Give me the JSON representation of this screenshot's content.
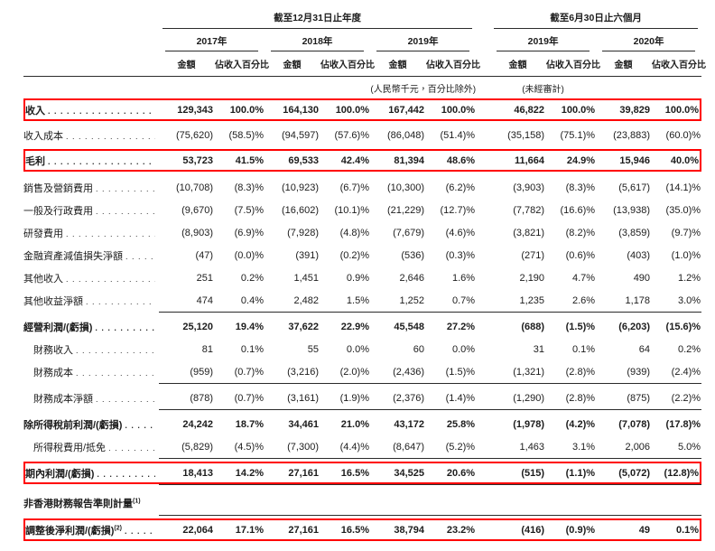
{
  "colors": {
    "highlight_red": "#ff0000",
    "rule_color": "#2b2b2b"
  },
  "table": {
    "header": {
      "period_groups": [
        {
          "label": "截至12月31日止年度"
        },
        {
          "label": "截至6月30日止六個月"
        }
      ],
      "years": [
        "2017年",
        "2018年",
        "2019年",
        "2019年",
        "2020年"
      ],
      "amount_label": "金額",
      "pct_label": "佔收入百分比",
      "currency_note": "(人民幣千元，百分比除外)",
      "unaudited_note": "(未經審計)"
    },
    "rows": [
      {
        "type": "data",
        "label": "收入",
        "bold": true,
        "highlight": true,
        "values": [
          "129,343",
          "100.0%",
          "164,130",
          "100.0%",
          "167,442",
          "100.0%",
          "46,822",
          "100.0%",
          "39,829",
          "100.0%"
        ]
      },
      {
        "type": "space",
        "h": 3
      },
      {
        "type": "data",
        "label": "收入成本",
        "values": [
          "(75,620)",
          "(58.5)%",
          "(94,597)",
          "(57.6)%",
          "(86,048)",
          "(51.4)%",
          "(35,158)",
          "(75.1)%",
          "(23,883)",
          "(60.0)%"
        ]
      },
      {
        "type": "space",
        "h": 3
      },
      {
        "type": "data",
        "label": "毛利",
        "bold": true,
        "highlight": true,
        "values": [
          "53,723",
          "41.5%",
          "69,533",
          "42.4%",
          "81,394",
          "48.6%",
          "11,664",
          "24.9%",
          "15,946",
          "40.0%"
        ]
      },
      {
        "type": "space",
        "h": 5
      },
      {
        "type": "data",
        "label": "銷售及營銷費用",
        "values": [
          "(10,708)",
          "(8.3)%",
          "(10,923)",
          "(6.7)%",
          "(10,300)",
          "(6.2)%",
          "(3,903)",
          "(8.3)%",
          "(5,617)",
          "(14.1)%"
        ]
      },
      {
        "type": "data",
        "label": "一般及行政費用",
        "values": [
          "(9,670)",
          "(7.5)%",
          "(16,602)",
          "(10.1)%",
          "(21,229)",
          "(12.7)%",
          "(7,782)",
          "(16.6)%",
          "(13,938)",
          "(35.0)%"
        ]
      },
      {
        "type": "data",
        "label": "研發費用",
        "values": [
          "(8,903)",
          "(6.9)%",
          "(7,928)",
          "(4.8)%",
          "(7,679)",
          "(4.6)%",
          "(3,821)",
          "(8.2)%",
          "(3,859)",
          "(9.7)%"
        ]
      },
      {
        "type": "data",
        "label": "金融資產減值損失淨額",
        "values": [
          "(47)",
          "(0.0)%",
          "(391)",
          "(0.2)%",
          "(536)",
          "(0.3)%",
          "(271)",
          "(0.6)%",
          "(403)",
          "(1.0)%"
        ]
      },
      {
        "type": "data",
        "label": "其他收入",
        "values": [
          "251",
          "0.2%",
          "1,451",
          "0.9%",
          "2,646",
          "1.6%",
          "2,190",
          "4.7%",
          "490",
          "1.2%"
        ]
      },
      {
        "type": "data",
        "label": "其他收益淨額",
        "values": [
          "474",
          "0.4%",
          "2,482",
          "1.5%",
          "1,252",
          "0.7%",
          "1,235",
          "2.6%",
          "1,178",
          "3.0%"
        ]
      },
      {
        "type": "rule"
      },
      {
        "type": "data",
        "label": "經營利潤/(虧損)",
        "bold": true,
        "values": [
          "25,120",
          "19.4%",
          "37,622",
          "22.9%",
          "45,548",
          "27.2%",
          "(688)",
          "(1.5)%",
          "(6,203)",
          "(15.6)%"
        ]
      },
      {
        "type": "data",
        "label": "財務收入",
        "indent": true,
        "values": [
          "81",
          "0.1%",
          "55",
          "0.0%",
          "60",
          "0.0%",
          "31",
          "0.1%",
          "64",
          "0.2%"
        ]
      },
      {
        "type": "data",
        "label": "財務成本",
        "indent": true,
        "values": [
          "(959)",
          "(0.7)%",
          "(3,216)",
          "(2.0)%",
          "(2,436)",
          "(1.5)%",
          "(1,321)",
          "(2.8)%",
          "(939)",
          "(2.4)%"
        ]
      },
      {
        "type": "rule"
      },
      {
        "type": "data",
        "label": "財務成本淨額",
        "indent": true,
        "values": [
          "(878)",
          "(0.7)%",
          "(3,161)",
          "(1.9)%",
          "(2,376)",
          "(1.4)%",
          "(1,290)",
          "(2.8)%",
          "(875)",
          "(2.2)%"
        ]
      },
      {
        "type": "rule"
      },
      {
        "type": "data",
        "label": "除所得稅前利潤/(虧損)",
        "bold": true,
        "values": [
          "24,242",
          "18.7%",
          "34,461",
          "21.0%",
          "43,172",
          "25.8%",
          "(1,978)",
          "(4.2)%",
          "(7,078)",
          "(17.8)%"
        ]
      },
      {
        "type": "data",
        "label": "所得稅費用/抵免",
        "indent": true,
        "values": [
          "(5,829)",
          "(4.5)%",
          "(7,300)",
          "(4.4)%",
          "(8,647)",
          "(5.2)%",
          "1,463",
          "3.1%",
          "2,006",
          "5.0%"
        ]
      },
      {
        "type": "rule"
      },
      {
        "type": "data",
        "label": "期內利潤/(虧損)",
        "bold": true,
        "highlight": true,
        "values": [
          "18,413",
          "14.2%",
          "27,161",
          "16.5%",
          "34,525",
          "20.6%",
          "(515)",
          "(1.1)%",
          "(5,072)",
          "(12.8)%"
        ]
      },
      {
        "type": "rule"
      },
      {
        "type": "space",
        "h": 4
      },
      {
        "type": "section",
        "label": "非香港財務報告準則計量",
        "sup": "(1)"
      },
      {
        "type": "rule"
      },
      {
        "type": "data",
        "label": "調整後淨利潤/(虧損)",
        "sup": "(2)",
        "bold": true,
        "highlight": true,
        "values": [
          "22,064",
          "17.1%",
          "27,161",
          "16.5%",
          "38,794",
          "23.2%",
          "(416)",
          "(0.9)%",
          "49",
          "0.1%"
        ]
      }
    ]
  }
}
